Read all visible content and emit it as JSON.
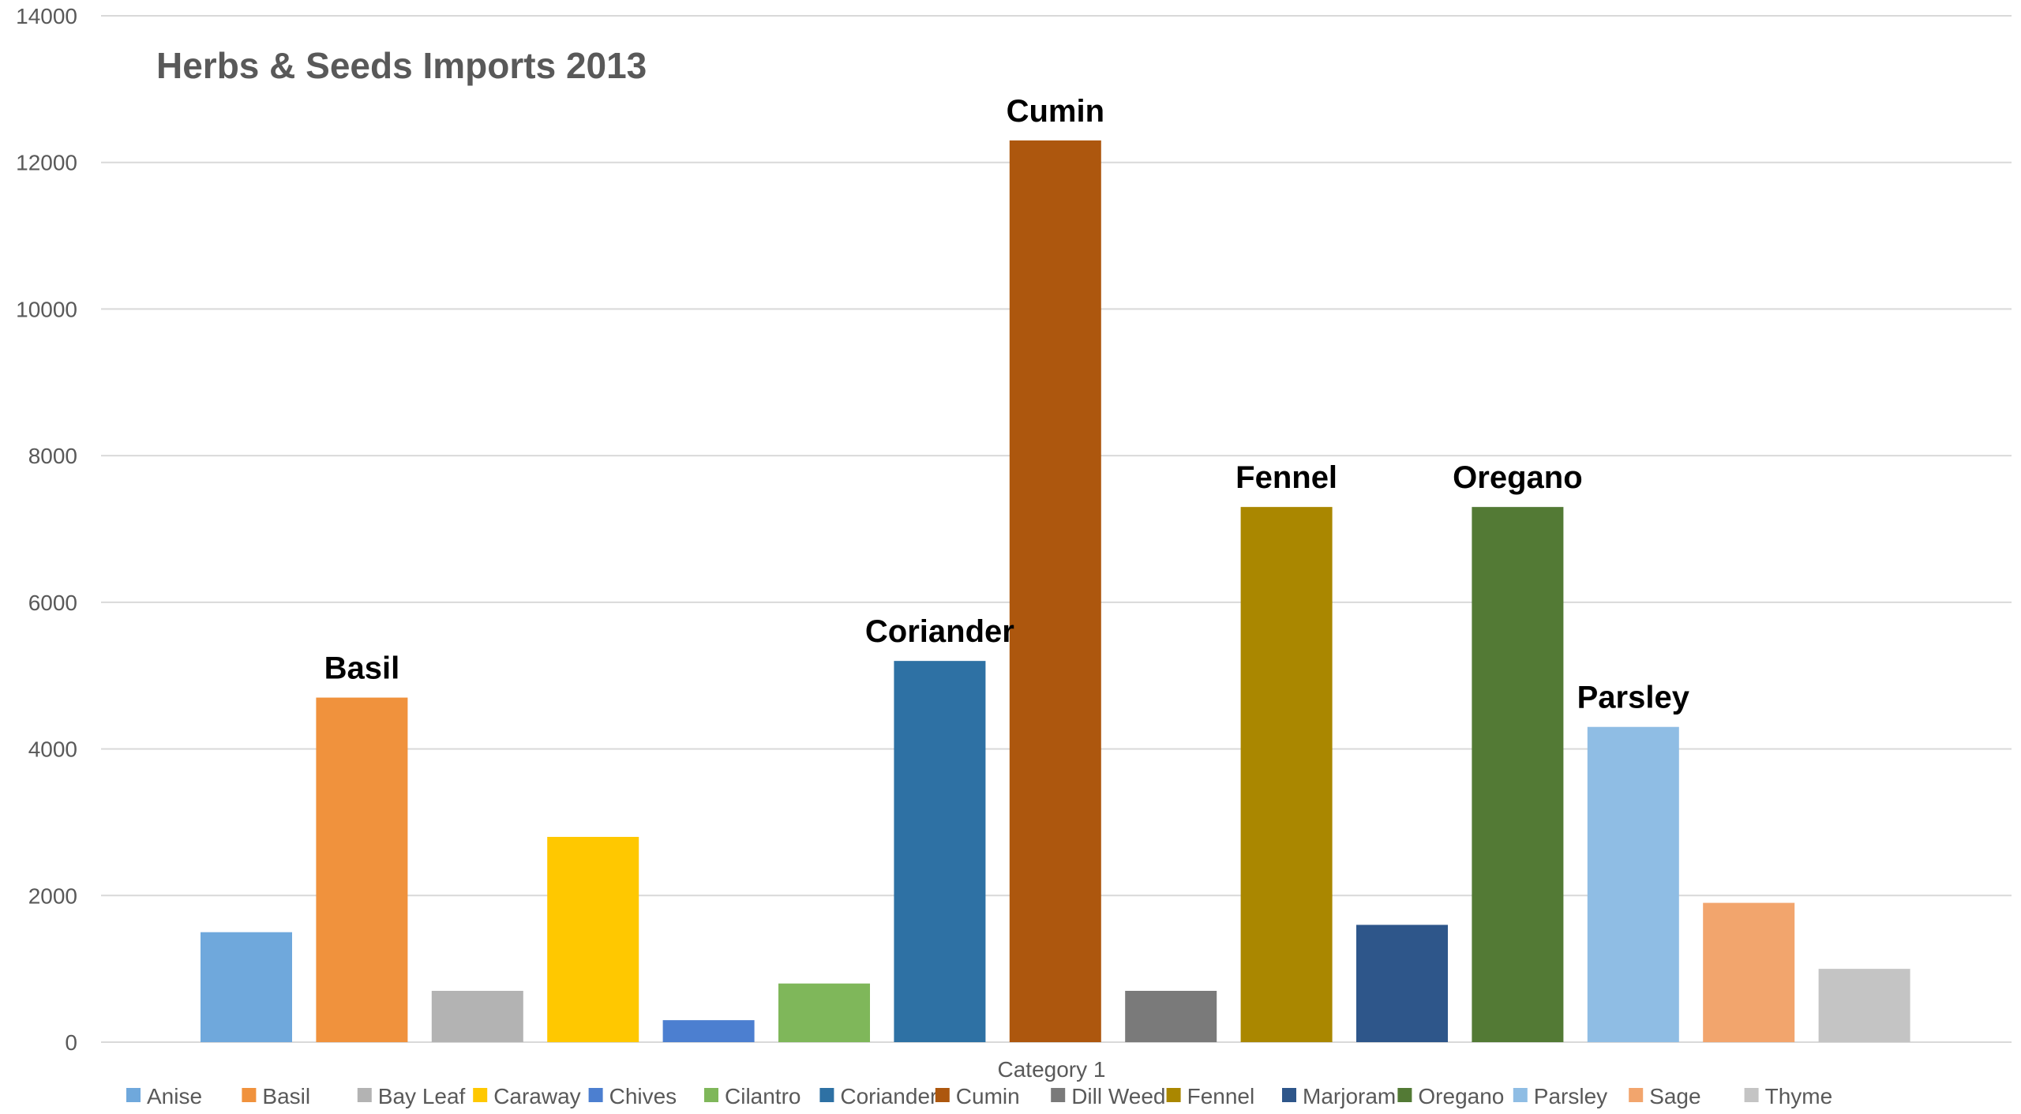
{
  "chart_data": {
    "type": "bar",
    "title": "Herbs & Seeds Imports 2013",
    "xlabel": "",
    "ylabel": "",
    "categories": [
      "Category 1"
    ],
    "ylim": [
      0,
      14000
    ],
    "yticks": [
      0,
      2000,
      4000,
      6000,
      8000,
      10000,
      12000,
      14000
    ],
    "grid": true,
    "legend_position": "bottom",
    "series": [
      {
        "name": "Anise",
        "color": "#6FA8DC",
        "values": [
          1500
        ],
        "label": ""
      },
      {
        "name": "Basil",
        "color": "#F0923D",
        "values": [
          4700
        ],
        "label": "Basil"
      },
      {
        "name": "Bay Leaf",
        "color": "#B3B3B3",
        "values": [
          700
        ],
        "label": ""
      },
      {
        "name": "Caraway",
        "color": "#FFC800",
        "values": [
          2800
        ],
        "label": ""
      },
      {
        "name": "Chives",
        "color": "#4C7FD0",
        "values": [
          300
        ],
        "label": ""
      },
      {
        "name": "Cilantro",
        "color": "#7FB75A",
        "values": [
          800
        ],
        "label": ""
      },
      {
        "name": "Coriander",
        "color": "#2E71A4",
        "values": [
          5200
        ],
        "label": "Coriander"
      },
      {
        "name": "Cumin",
        "color": "#AD570E",
        "values": [
          12300
        ],
        "label": "Cumin"
      },
      {
        "name": "Dill Weed",
        "color": "#7A7A7A",
        "values": [
          700
        ],
        "label": ""
      },
      {
        "name": "Fennel",
        "color": "#AA8700",
        "values": [
          7300
        ],
        "label": "Fennel"
      },
      {
        "name": "Marjoram",
        "color": "#2E568A",
        "values": [
          1600
        ],
        "label": ""
      },
      {
        "name": "Oregano",
        "color": "#537A35",
        "values": [
          7300
        ],
        "label": "Oregano"
      },
      {
        "name": "Parsley",
        "color": "#8FBDE4",
        "values": [
          4300
        ],
        "label": "Parsley"
      },
      {
        "name": "Sage",
        "color": "#F2A56D",
        "values": [
          1900
        ],
        "label": ""
      },
      {
        "name": "Thyme",
        "color": "#C4C4C4",
        "values": [
          1000
        ],
        "label": ""
      }
    ]
  },
  "colors": {
    "grid": "#D9D9D9",
    "axis_text": "#595959",
    "title": "#595959",
    "data_label": "#000000"
  }
}
